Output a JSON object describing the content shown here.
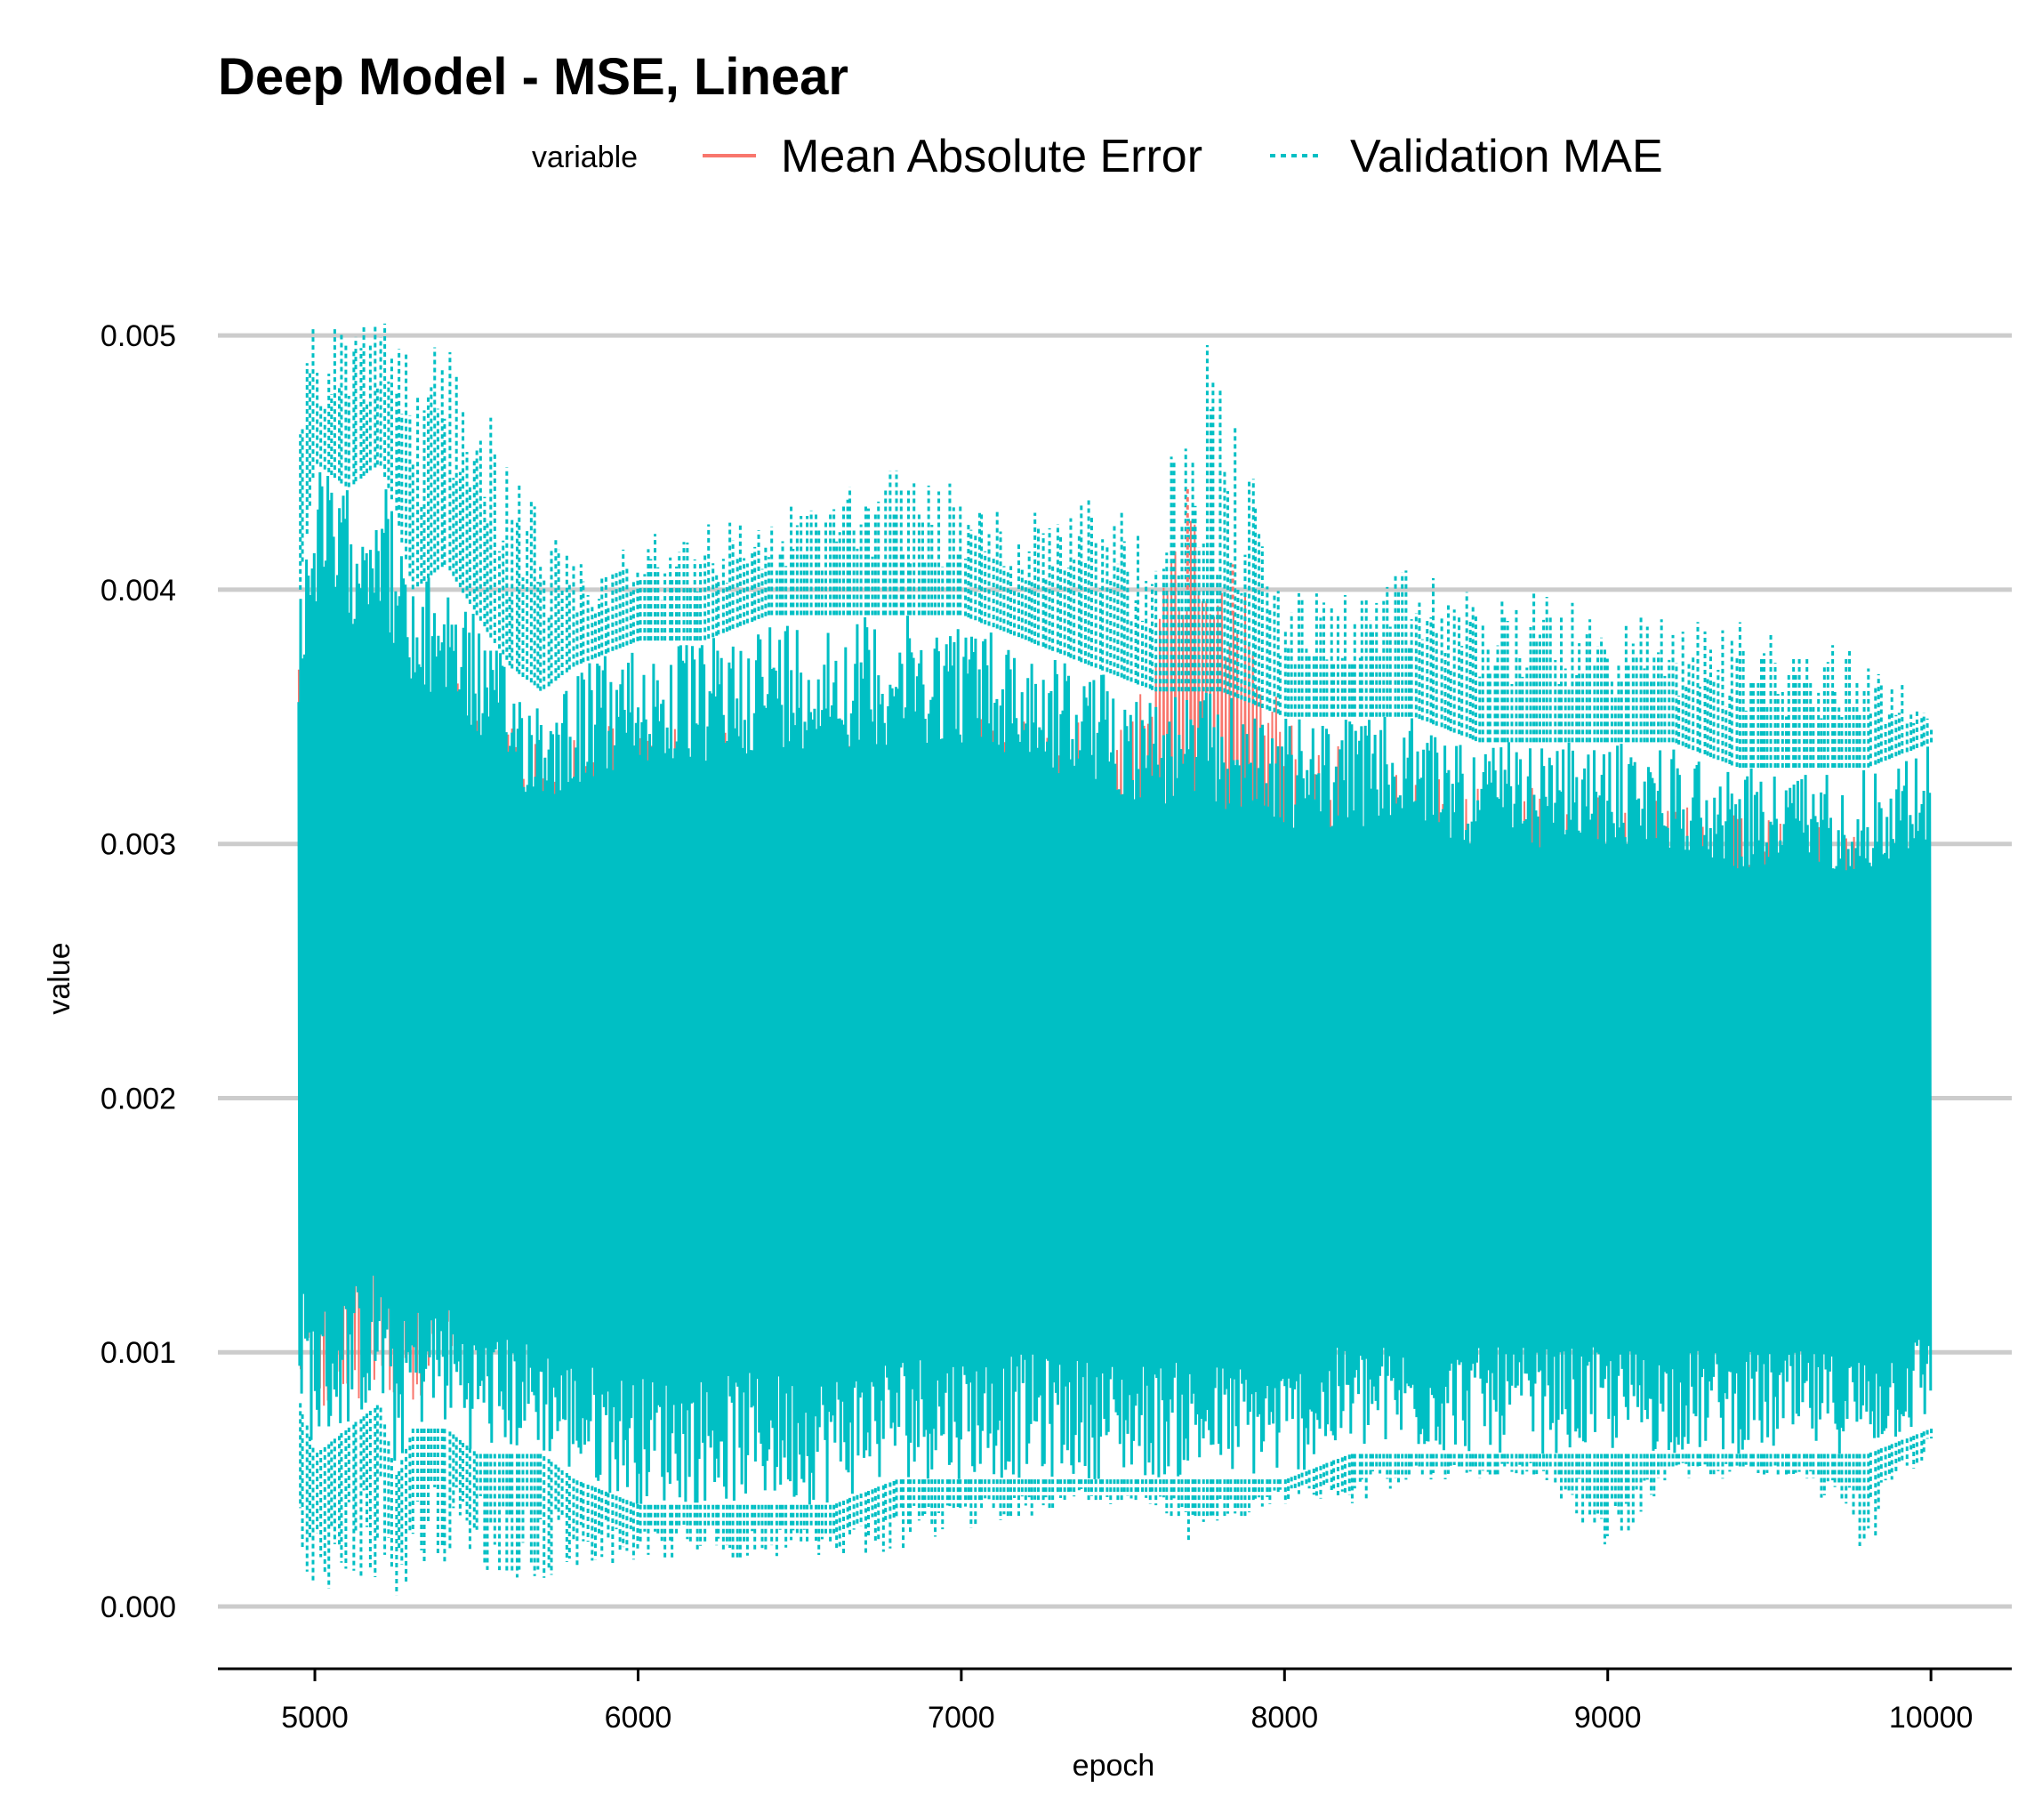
{
  "chart_data": {
    "type": "line",
    "title": "Deep Model - MSE, Linear",
    "xlabel": "epoch",
    "ylabel": "value",
    "xlim": [
      4700,
      10250
    ],
    "ylim": [
      0,
      0.0052
    ],
    "x_ticks": [
      {
        "value": 5000,
        "label": "5000"
      },
      {
        "value": 6000,
        "label": "6000"
      },
      {
        "value": 7000,
        "label": "7000"
      },
      {
        "value": 8000,
        "label": "8000"
      },
      {
        "value": 9000,
        "label": "9000"
      },
      {
        "value": 10000,
        "label": "10000"
      }
    ],
    "y_ticks": [
      {
        "value": 0.0,
        "label": "0.000"
      },
      {
        "value": 0.001,
        "label": "0.001"
      },
      {
        "value": 0.002,
        "label": "0.002"
      },
      {
        "value": 0.003,
        "label": "0.003"
      },
      {
        "value": 0.004,
        "label": "0.004"
      },
      {
        "value": 0.005,
        "label": "0.005"
      }
    ],
    "grid": "horizontal",
    "legend": {
      "position": "top",
      "title": "variable",
      "entries": [
        {
          "name": "Mean Absolute Error",
          "color": "#F8766D",
          "dash": "solid"
        },
        {
          "name": "Validation MAE",
          "color": "#00BFC4",
          "dash": "dotted"
        }
      ]
    },
    "series": [
      {
        "name": "Mean Absolute Error",
        "color": "#F8766D",
        "x": [
          4950,
          5000,
          5100,
          5200,
          5300,
          5400,
          5500,
          5700,
          6000,
          6500,
          7000,
          7500,
          7700,
          7850,
          8000,
          8500,
          9000,
          9500,
          10000
        ],
        "min": [
          0.0008,
          0.0007,
          0.0007,
          0.0008,
          0.0008,
          0.0009,
          0.0009,
          0.001,
          0.001,
          0.0011,
          0.0011,
          0.0011,
          0.0011,
          0.0012,
          0.0012,
          0.0012,
          0.0012,
          0.0012,
          0.0012
        ],
        "max": [
          0.004,
          0.0038,
          0.0039,
          0.004,
          0.0037,
          0.0038,
          0.0036,
          0.0035,
          0.0035,
          0.0035,
          0.0035,
          0.0035,
          0.0044,
          0.0041,
          0.0035,
          0.0033,
          0.0032,
          0.0031,
          0.003
        ]
      },
      {
        "name": "Validation MAE",
        "color": "#00BFC4",
        "x": [
          4950,
          5000,
          5100,
          5200,
          5250,
          5300,
          5400,
          5500,
          5600,
          5700,
          5800,
          6000,
          6200,
          6400,
          6600,
          6800,
          7000,
          7200,
          7400,
          7600,
          7700,
          7800,
          8000,
          8200,
          8400,
          8600,
          8800,
          9000,
          9200,
          9400,
          9600,
          9800,
          10000
        ],
        "min": [
          0.0001,
          5e-05,
          8e-05,
          0.0001,
          0.0,
          0.0001,
          0.00015,
          0.00015,
          0.0001,
          0.0001,
          0.00015,
          0.00017,
          0.00018,
          0.00018,
          0.0002,
          0.0002,
          0.0003,
          0.00035,
          0.0004,
          0.0004,
          0.00025,
          0.0003,
          0.0004,
          0.0004,
          0.0005,
          0.0005,
          0.0005,
          0.0002,
          0.0005,
          0.0005,
          0.0005,
          0.0002,
          0.00065
        ],
        "max": [
          0.0049,
          0.0051,
          0.005,
          0.0052,
          0.0052,
          0.0048,
          0.0051,
          0.0049,
          0.0045,
          0.0043,
          0.0041,
          0.0042,
          0.0043,
          0.0043,
          0.0044,
          0.0045,
          0.0044,
          0.0043,
          0.0046,
          0.0041,
          0.0052,
          0.0049,
          0.004,
          0.004,
          0.0041,
          0.004,
          0.004,
          0.0039,
          0.0039,
          0.0039,
          0.0038,
          0.0038,
          0.0035
        ],
        "lower_core": [
          0.0008,
          0.0006,
          0.0007,
          0.0008,
          0.0005,
          0.0007,
          0.0007,
          0.0006,
          0.0006,
          0.0006,
          0.0005,
          0.0004,
          0.0004,
          0.0004,
          0.0004,
          0.0005,
          0.0005,
          0.0005,
          0.0005,
          0.0005,
          0.0005,
          0.0005,
          0.0005,
          0.0006,
          0.0006,
          0.0006,
          0.0006,
          0.0006,
          0.0006,
          0.0006,
          0.0006,
          0.0006,
          0.0007
        ],
        "upper_core": [
          0.004,
          0.0045,
          0.0044,
          0.0045,
          0.0043,
          0.004,
          0.0041,
          0.0039,
          0.0037,
          0.0036,
          0.0037,
          0.0038,
          0.0038,
          0.0039,
          0.0039,
          0.0039,
          0.0039,
          0.0038,
          0.0037,
          0.0036,
          0.0036,
          0.0036,
          0.0035,
          0.0035,
          0.0035,
          0.0034,
          0.0034,
          0.0034,
          0.0034,
          0.0033,
          0.0033,
          0.0033,
          0.0034
        ]
      }
    ]
  }
}
